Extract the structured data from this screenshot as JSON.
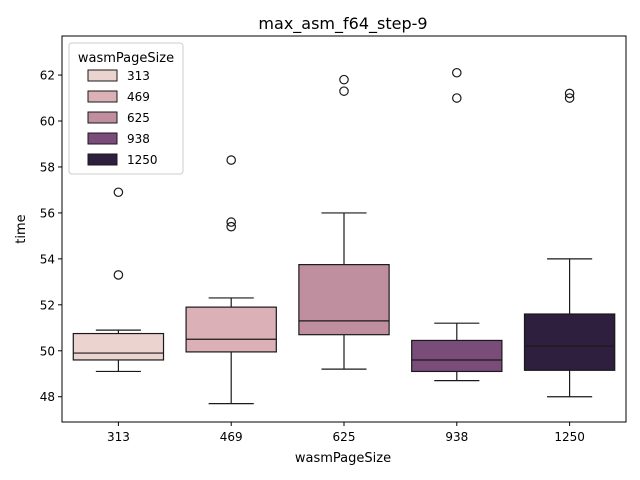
{
  "chart_data": {
    "type": "box",
    "title": "max_asm_f64_step-9",
    "xlabel": "wasmPageSize",
    "ylabel": "time",
    "ylim": [
      46.9,
      63.7
    ],
    "yticks": [
      48,
      50,
      52,
      54,
      56,
      58,
      60,
      62
    ],
    "grid": false,
    "legend": {
      "title": "wasmPageSize",
      "placement": "top-left",
      "entries": [
        "313",
        "469",
        "625",
        "938",
        "1250"
      ]
    },
    "categories": [
      "313",
      "469",
      "625",
      "938",
      "1250"
    ],
    "series": [
      {
        "category": "313",
        "color": "#ebd3d0",
        "whisker_low": 49.1,
        "q1": 49.6,
        "median": 49.9,
        "q3": 50.75,
        "whisker_high": 50.9,
        "outliers": [
          53.3,
          56.9
        ]
      },
      {
        "category": "469",
        "color": "#dbb1b7",
        "whisker_low": 47.7,
        "q1": 49.95,
        "median": 50.5,
        "q3": 51.9,
        "whisker_high": 52.3,
        "outliers": [
          55.4,
          55.6,
          58.3
        ]
      },
      {
        "category": "625",
        "color": "#bf8f9f",
        "whisker_low": 49.2,
        "q1": 50.7,
        "median": 51.3,
        "q3": 53.75,
        "whisker_high": 56.0,
        "outliers": [
          61.3,
          61.8
        ]
      },
      {
        "category": "938",
        "color": "#7a4c79",
        "whisker_low": 48.7,
        "q1": 49.1,
        "median": 49.6,
        "q3": 50.45,
        "whisker_high": 51.2,
        "outliers": [
          61.0,
          62.1
        ]
      },
      {
        "category": "1250",
        "color": "#2d1f3d",
        "whisker_low": 48.0,
        "q1": 49.15,
        "median": 50.2,
        "q3": 51.6,
        "whisker_high": 54.0,
        "outliers": [
          61.0,
          61.2
        ]
      }
    ]
  }
}
